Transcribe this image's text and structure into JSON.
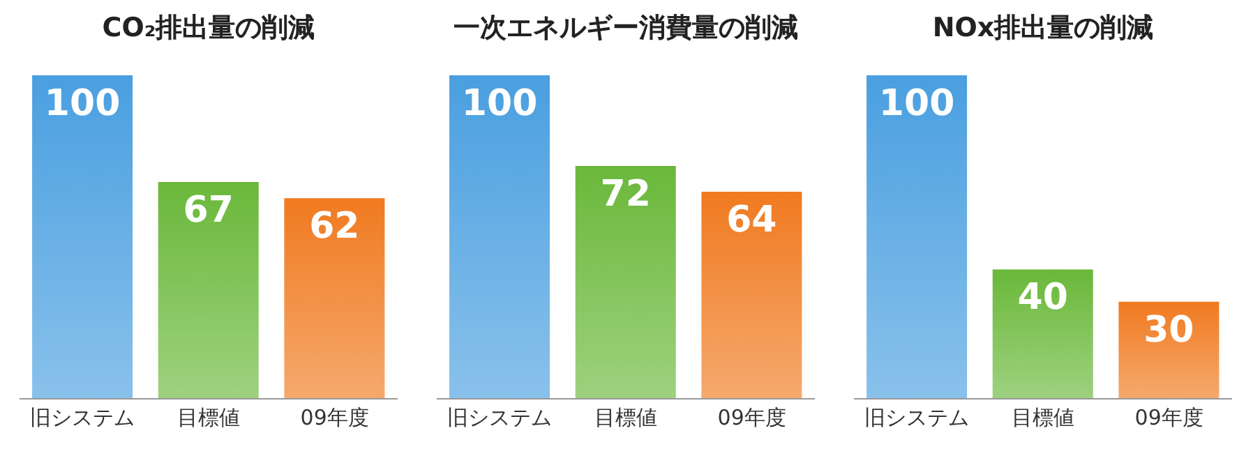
{
  "chart_data": [
    {
      "type": "bar",
      "title": "CO₂排出量の削減",
      "categories": [
        "旧システム",
        "目標値",
        "09年度"
      ],
      "values": [
        100,
        67,
        62
      ],
      "colors": [
        "#4a9fe0",
        "#6ab83a",
        "#f07a20"
      ],
      "data_labels": true
    },
    {
      "type": "bar",
      "title": "一次エネルギー消費量の削減",
      "categories": [
        "旧システム",
        "目標値",
        "09年度"
      ],
      "values": [
        100,
        72,
        64
      ],
      "colors": [
        "#4a9fe0",
        "#6ab83a",
        "#f07a20"
      ],
      "data_labels": true
    },
    {
      "type": "bar",
      "title": "NOx排出量の削減",
      "categories": [
        "旧システム",
        "目標値",
        "09年度"
      ],
      "values": [
        100,
        40,
        30
      ],
      "colors": [
        "#4a9fe0",
        "#6ab83a",
        "#f07a20"
      ],
      "data_labels": true
    }
  ]
}
